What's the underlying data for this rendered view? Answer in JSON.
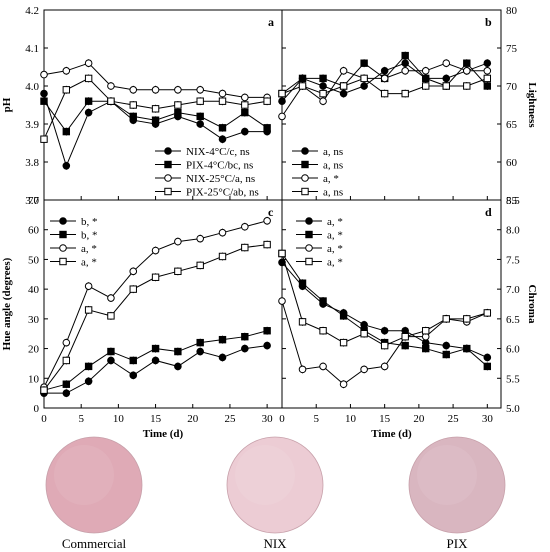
{
  "chart_data": [
    {
      "panel": "a",
      "type": "line",
      "xlabel": "",
      "ylabel": "pH",
      "xlim": [
        0,
        32
      ],
      "ylim": [
        3.7,
        4.2
      ],
      "yticks": [
        3.7,
        3.8,
        3.9,
        4.0,
        4.1,
        4.2
      ],
      "x_ticklabels_shown": false,
      "legend_position": "bottom-right",
      "x": [
        0,
        3,
        6,
        9,
        12,
        15,
        18,
        21,
        24,
        27,
        30
      ],
      "series": [
        {
          "name": "NIX-4°C/c, ns",
          "marker": "circle-filled",
          "values": [
            3.98,
            3.79,
            3.93,
            3.96,
            3.91,
            3.9,
            3.92,
            3.9,
            3.86,
            3.88,
            3.88
          ]
        },
        {
          "name": "PIX-4°C/bc, ns",
          "marker": "square-filled",
          "values": [
            3.96,
            3.88,
            3.96,
            3.96,
            3.92,
            3.91,
            3.93,
            3.92,
            3.89,
            3.93,
            3.89
          ]
        },
        {
          "name": "NIX-25°C/a, ns",
          "marker": "circle-open",
          "values": [
            4.03,
            4.04,
            4.06,
            4.0,
            3.99,
            3.99,
            3.99,
            3.99,
            3.98,
            3.97,
            3.97
          ]
        },
        {
          "name": "PIX-25°C/ab, ns",
          "marker": "square-open",
          "values": [
            3.86,
            3.99,
            4.02,
            3.96,
            3.95,
            3.94,
            3.95,
            3.96,
            3.96,
            3.95,
            3.96
          ]
        }
      ]
    },
    {
      "panel": "b",
      "type": "line",
      "xlabel": "",
      "ylabel": "Lightness",
      "xlim": [
        0,
        32
      ],
      "ylim": [
        55,
        80
      ],
      "yticks": [
        55,
        60,
        65,
        70,
        75,
        80
      ],
      "x_ticklabels_shown": false,
      "legend_position": "bottom-left",
      "x": [
        0,
        3,
        6,
        9,
        12,
        15,
        18,
        21,
        24,
        27,
        30
      ],
      "series": [
        {
          "name": "a, ns",
          "marker": "circle-filled",
          "values": [
            68,
            71,
            70,
            69,
            70,
            72,
            73,
            71,
            71,
            72,
            73
          ]
        },
        {
          "name": "a, ns",
          "marker": "square-filled",
          "values": [
            69,
            71,
            71,
            70,
            73,
            71,
            74,
            71,
            70,
            73,
            70
          ]
        },
        {
          "name": "a, *",
          "marker": "circle-open",
          "values": [
            66,
            70,
            68,
            72,
            71,
            71,
            72,
            72,
            73,
            72,
            72
          ]
        },
        {
          "name": "a, ns",
          "marker": "square-open",
          "values": [
            69,
            70,
            69,
            70,
            71,
            69,
            69,
            70,
            70,
            70,
            71
          ]
        }
      ]
    },
    {
      "panel": "c",
      "type": "line",
      "xlabel": "Time (d)",
      "ylabel": "Hue angle (degrees)",
      "xlim": [
        0,
        32
      ],
      "ylim": [
        0,
        70
      ],
      "yticks": [
        0,
        10,
        20,
        30,
        40,
        50,
        60,
        70
      ],
      "xticks": [
        0,
        5,
        10,
        15,
        20,
        25,
        30
      ],
      "legend_position": "top-left",
      "x": [
        0,
        3,
        6,
        9,
        12,
        15,
        18,
        21,
        24,
        27,
        30
      ],
      "series": [
        {
          "name": "b, *",
          "marker": "circle-filled",
          "values": [
            5,
            5,
            9,
            16,
            11,
            16,
            14,
            19,
            17,
            20,
            21
          ]
        },
        {
          "name": "b, *",
          "marker": "square-filled",
          "values": [
            6,
            8,
            14,
            19,
            16,
            20,
            19,
            22,
            23,
            24,
            26
          ]
        },
        {
          "name": "a, *",
          "marker": "circle-open",
          "values": [
            7,
            22,
            41,
            37,
            46,
            53,
            56,
            57,
            59,
            61,
            63
          ]
        },
        {
          "name": "a, *",
          "marker": "square-open",
          "values": [
            6,
            16,
            33,
            31,
            40,
            44,
            46,
            48,
            51,
            54,
            55
          ]
        }
      ]
    },
    {
      "panel": "d",
      "type": "line",
      "xlabel": "Time (d)",
      "ylabel": "Chroma",
      "xlim": [
        0,
        32
      ],
      "ylim": [
        5.0,
        8.5
      ],
      "yticks": [
        5.0,
        5.5,
        6.0,
        6.5,
        7.0,
        7.5,
        8.0,
        8.5
      ],
      "xticks": [
        0,
        5,
        10,
        15,
        20,
        25,
        30
      ],
      "legend_position": "top-right",
      "x": [
        0,
        3,
        6,
        9,
        12,
        15,
        18,
        21,
        24,
        27,
        30
      ],
      "series": [
        {
          "name": "a, *",
          "marker": "circle-filled",
          "values": [
            7.45,
            7.05,
            6.75,
            6.6,
            6.4,
            6.3,
            6.3,
            6.1,
            6.05,
            6.0,
            5.85
          ]
        },
        {
          "name": "a, *",
          "marker": "square-filled",
          "values": [
            7.6,
            7.1,
            6.8,
            6.55,
            6.3,
            6.1,
            6.05,
            6.0,
            5.9,
            6.0,
            5.7
          ]
        },
        {
          "name": "a, *",
          "marker": "circle-open",
          "values": [
            6.8,
            5.65,
            5.7,
            5.4,
            5.65,
            5.7,
            6.2,
            6.2,
            6.5,
            6.45,
            6.6
          ]
        },
        {
          "name": "a, *",
          "marker": "square-open",
          "values": [
            7.6,
            6.45,
            6.3,
            6.1,
            6.25,
            6.05,
            6.2,
            6.3,
            6.5,
            6.5,
            6.6
          ]
        }
      ]
    }
  ],
  "photos": [
    {
      "label": "Commercial",
      "color": "#dfaab6"
    },
    {
      "label": "NIX",
      "color": "#ecccd4"
    },
    {
      "label": "PIX",
      "color": "#d9b6c0"
    }
  ]
}
